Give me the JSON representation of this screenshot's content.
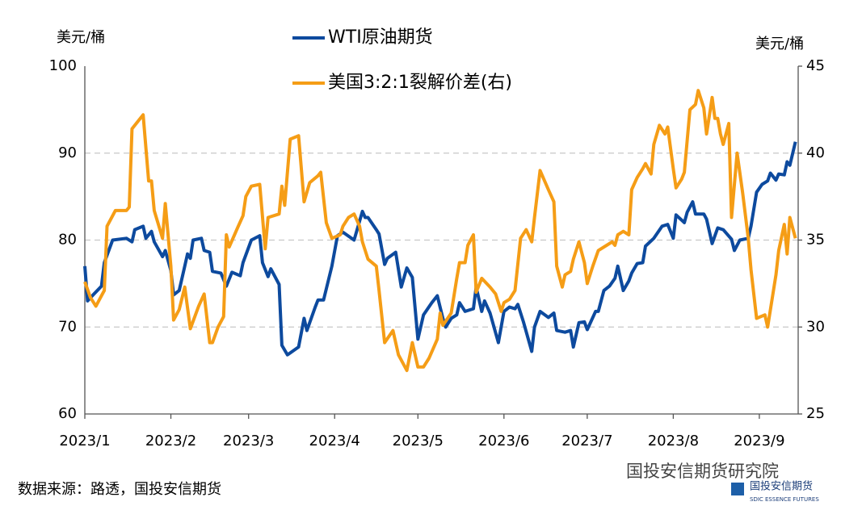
{
  "chart_data": {
    "type": "line",
    "y_label": "美元/桶",
    "y2_label": "美元/桶",
    "source": "数据来源：路透，国投安信期货",
    "watermark": "国投安信期货研究院",
    "logo": {
      "name": "国投安信期货",
      "name_en": "SDIC ESSENCE FUTURES"
    },
    "xlim": [
      0,
      257
    ],
    "xticks": [
      {
        "value": 0,
        "label": "2023/1"
      },
      {
        "value": 31,
        "label": "2023/2"
      },
      {
        "value": 59,
        "label": "2023/3"
      },
      {
        "value": 90,
        "label": "2023/4"
      },
      {
        "value": 120,
        "label": "2023/5"
      },
      {
        "value": 151,
        "label": "2023/6"
      },
      {
        "value": 181,
        "label": "2023/7"
      },
      {
        "value": 212,
        "label": "2023/8"
      },
      {
        "value": 243,
        "label": "2023/9"
      }
    ],
    "ylim": [
      60,
      100
    ],
    "yticks": [
      60,
      70,
      80,
      90,
      100
    ],
    "y2lim": [
      25,
      45
    ],
    "y2ticks": [
      25,
      30,
      35,
      40,
      45
    ],
    "grid": true,
    "series": [
      {
        "name": "WTI原油期货",
        "color": "#0d4a9e",
        "axis": "y",
        "x": [
          0,
          1,
          3,
          6,
          7,
          10,
          15,
          17,
          18,
          21,
          22,
          24,
          25,
          28,
          29,
          31,
          32,
          34,
          36,
          37,
          38,
          39,
          42,
          43,
          45,
          46,
          49,
          51,
          53,
          56,
          57,
          60,
          63,
          64,
          66,
          67,
          70,
          71,
          73,
          77,
          79,
          80,
          83,
          84,
          86,
          89,
          91,
          93,
          97,
          100,
          101,
          102,
          105,
          106,
          108,
          109,
          112,
          114,
          116,
          118,
          120,
          122,
          125,
          127,
          129,
          130,
          132,
          134,
          135,
          137,
          140,
          141,
          143,
          144,
          146,
          149,
          151,
          153,
          155,
          156,
          158,
          161,
          162,
          164,
          167,
          169,
          170,
          173,
          175,
          176,
          178,
          180,
          181,
          184,
          185,
          187,
          189,
          191,
          192,
          194,
          196,
          197,
          199,
          201,
          202,
          205,
          208,
          210,
          212,
          213,
          216,
          217,
          219,
          220,
          223,
          224,
          226,
          228,
          230,
          233,
          234,
          236,
          239,
          240,
          242,
          244,
          246,
          247,
          249,
          250,
          252,
          253,
          254,
          256
        ],
        "values": [
          77.0,
          73.0,
          73.7,
          74.7,
          77.4,
          80.0,
          80.2,
          79.8,
          81.2,
          81.6,
          80.2,
          81.0,
          79.8,
          78.1,
          78.8,
          76.5,
          73.7,
          74.2,
          77.0,
          78.4,
          77.9,
          80.0,
          80.2,
          78.8,
          78.6,
          76.4,
          76.2,
          74.7,
          76.3,
          75.9,
          77.4,
          80.0,
          80.5,
          77.4,
          75.8,
          76.7,
          74.9,
          67.9,
          66.8,
          67.7,
          71.0,
          69.6,
          72.3,
          73.1,
          73.1,
          77.0,
          80.5,
          80.9,
          80.0,
          83.3,
          82.6,
          82.6,
          81.2,
          80.7,
          77.2,
          77.9,
          78.6,
          74.6,
          76.8,
          75.7,
          68.6,
          71.4,
          72.8,
          73.6,
          71.0,
          70.0,
          71.0,
          71.4,
          72.8,
          71.8,
          72.1,
          74.6,
          71.8,
          73.0,
          71.6,
          68.2,
          71.8,
          72.3,
          72.1,
          72.6,
          70.6,
          67.2,
          70.0,
          71.8,
          71.1,
          71.6,
          69.6,
          69.4,
          69.6,
          67.7,
          70.5,
          70.6,
          69.7,
          71.8,
          71.8,
          74.2,
          74.7,
          75.6,
          77.0,
          74.2,
          75.3,
          76.2,
          77.3,
          77.4,
          79.3,
          80.2,
          81.6,
          81.8,
          80.2,
          82.9,
          82.0,
          83.2,
          84.4,
          83.0,
          83.0,
          82.4,
          79.6,
          81.4,
          81.2,
          80.1,
          78.8,
          80.0,
          80.2,
          81.6,
          85.5,
          86.4,
          86.8,
          87.7,
          86.9,
          87.6,
          87.5,
          89.0,
          88.6,
          91.3
        ]
      },
      {
        "name": "美国3:2:1裂解价差(右)",
        "color": "#f59d16",
        "axis": "y2",
        "x": [
          0,
          2,
          4,
          7,
          8,
          11,
          15,
          16,
          17,
          21,
          23,
          24,
          25,
          28,
          29,
          31,
          32,
          34,
          36,
          38,
          41,
          43,
          45,
          46,
          48,
          50,
          51,
          52,
          55,
          57,
          58,
          60,
          63,
          65,
          66,
          70,
          71,
          72,
          74,
          77,
          79,
          81,
          84,
          85,
          87,
          89,
          92,
          93,
          95,
          97,
          99,
          100,
          102,
          105,
          106,
          108,
          111,
          113,
          116,
          118,
          120,
          122,
          124,
          127,
          128,
          129,
          132,
          134,
          135,
          137,
          138,
          140,
          141,
          143,
          146,
          148,
          150,
          151,
          153,
          155,
          157,
          159,
          161,
          162,
          164,
          167,
          169,
          170,
          172,
          173,
          175,
          176,
          178,
          180,
          181,
          183,
          185,
          188,
          190,
          191,
          192,
          194,
          196,
          197,
          199,
          201,
          202,
          204,
          205,
          207,
          209,
          210,
          212,
          213,
          215,
          216,
          218,
          220,
          221,
          223,
          224,
          226,
          227,
          228,
          229,
          230,
          232,
          233,
          235,
          237,
          239,
          240,
          242,
          245,
          246,
          249,
          250,
          252,
          253,
          254,
          256
        ],
        "values": [
          32.6,
          31.7,
          31.2,
          32.1,
          35.8,
          36.7,
          36.7,
          36.9,
          41.4,
          42.2,
          38.4,
          38.4,
          36.7,
          35.1,
          37.1,
          33.5,
          30.4,
          31.0,
          32.3,
          29.9,
          31.2,
          31.9,
          29.1,
          29.1,
          30.0,
          30.6,
          35.3,
          34.6,
          35.7,
          36.4,
          37.5,
          38.1,
          38.2,
          34.5,
          36.3,
          36.5,
          38.1,
          37.0,
          40.8,
          41.0,
          37.2,
          38.3,
          38.7,
          38.9,
          36.0,
          35.1,
          35.3,
          35.8,
          36.3,
          36.5,
          35.8,
          34.9,
          33.9,
          33.5,
          32.1,
          29.1,
          29.8,
          28.4,
          27.5,
          29.1,
          27.7,
          27.7,
          28.2,
          29.3,
          30.8,
          30.1,
          30.8,
          32.8,
          33.7,
          33.7,
          34.7,
          35.3,
          32.0,
          32.8,
          32.3,
          31.9,
          30.9,
          31.4,
          31.6,
          32.1,
          35.1,
          35.6,
          34.9,
          36.3,
          39.0,
          37.9,
          37.2,
          33.5,
          32.3,
          33.0,
          33.2,
          33.9,
          34.9,
          33.7,
          32.5,
          33.5,
          34.4,
          34.7,
          34.9,
          34.7,
          35.3,
          35.5,
          35.3,
          37.9,
          38.6,
          39.1,
          39.4,
          38.8,
          40.5,
          41.6,
          41.1,
          41.5,
          39.1,
          38.0,
          38.5,
          38.9,
          42.5,
          42.8,
          43.6,
          42.6,
          41.1,
          43.2,
          42.0,
          42.0,
          41.1,
          40.5,
          41.7,
          36.3,
          40.0,
          37.7,
          35.1,
          33.3,
          30.5,
          30.7,
          30.0,
          33.0,
          34.4,
          35.9,
          34.2,
          36.3,
          35.1
        ]
      }
    ]
  }
}
